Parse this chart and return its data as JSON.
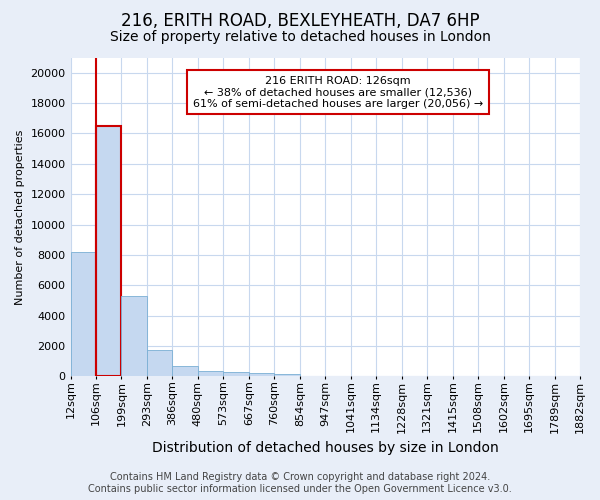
{
  "title": "216, ERITH ROAD, BEXLEYHEATH, DA7 6HP",
  "subtitle": "Size of property relative to detached houses in London",
  "xlabel": "Distribution of detached houses by size in London",
  "ylabel": "Number of detached properties",
  "bar_values": [
    8200,
    16500,
    5300,
    1750,
    700,
    350,
    260,
    200,
    160,
    0,
    0,
    0,
    0,
    0,
    0,
    0,
    0,
    0,
    0,
    0
  ],
  "bar_labels": [
    "12sqm",
    "106sqm",
    "199sqm",
    "293sqm",
    "386sqm",
    "480sqm",
    "573sqm",
    "667sqm",
    "760sqm",
    "854sqm",
    "947sqm",
    "1041sqm",
    "1134sqm",
    "1228sqm",
    "1321sqm",
    "1415sqm",
    "1508sqm",
    "1602sqm",
    "1695sqm",
    "1789sqm",
    "1882sqm"
  ],
  "bar_color": "#c5d8f0",
  "bar_edge_color": "#7aafd4",
  "highlight_bar_index": 1,
  "annotation_title": "216 ERITH ROAD: 126sqm",
  "annotation_line1": "← 38% of detached houses are smaller (12,536)",
  "annotation_line2": "61% of semi-detached houses are larger (20,056) →",
  "annotation_box_facecolor": "#ffffff",
  "annotation_box_edgecolor": "#cc0000",
  "red_line_color": "#cc0000",
  "ylim_max": 21000,
  "yticks": [
    0,
    2000,
    4000,
    6000,
    8000,
    10000,
    12000,
    14000,
    16000,
    18000,
    20000
  ],
  "footer_line1": "Contains HM Land Registry data © Crown copyright and database right 2024.",
  "footer_line2": "Contains public sector information licensed under the Open Government Licence v3.0.",
  "fig_facecolor": "#e8eef8",
  "plot_facecolor": "#ffffff",
  "grid_color": "#c8d8ee",
  "title_fontsize": 12,
  "subtitle_fontsize": 10,
  "xlabel_fontsize": 10,
  "ylabel_fontsize": 8,
  "tick_fontsize": 8,
  "annot_fontsize": 8,
  "footer_fontsize": 7
}
